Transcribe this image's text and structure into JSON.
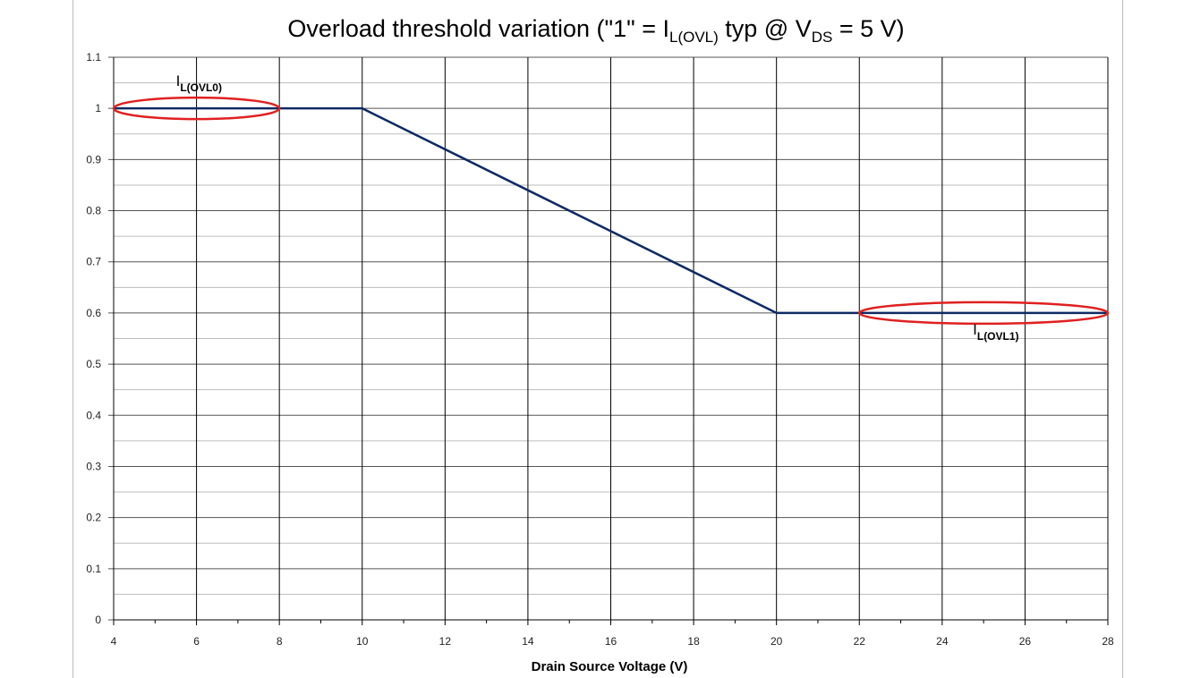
{
  "page": {
    "border_color": "#bdbdbd"
  },
  "chart_data": {
    "type": "line",
    "title": {
      "prefix": "Overload threshold variation (\"1\" = I",
      "sub1": "L(OVL)",
      "middle": " typ @ V",
      "sub2": "DS",
      "suffix": " = 5 V)"
    },
    "xlabel": "Drain Source Voltage (V)",
    "ylabel": "",
    "xlim": [
      4,
      28
    ],
    "ylim": [
      0,
      1.1
    ],
    "x_ticks": [
      "4",
      "6",
      "8",
      "10",
      "12",
      "14",
      "16",
      "18",
      "20",
      "22",
      "24",
      "26",
      "28"
    ],
    "y_ticks": [
      "0",
      "0.1",
      "0.2",
      "0.3",
      "0.4",
      "0.5",
      "0.6",
      "0.7",
      "0.8",
      "0.9",
      "1",
      "1.1"
    ],
    "grid": true,
    "series": [
      {
        "x": [
          4,
          10,
          20,
          28
        ],
        "y": [
          1,
          1,
          0.6,
          0.6
        ],
        "color": "#0f2a63"
      }
    ],
    "annotations": [
      {
        "main": "I",
        "sub": "L(OVL0)",
        "x": 6,
        "y": 1,
        "ellipse_x": [
          4,
          8
        ],
        "label_pos": "above"
      },
      {
        "main": "I",
        "sub": "L(OVL1)",
        "x": 25,
        "y": 0.6,
        "ellipse_x": [
          22,
          28
        ],
        "label_pos": "below"
      }
    ],
    "ellipse_color": "#e02020",
    "grid_color": "#000000"
  }
}
